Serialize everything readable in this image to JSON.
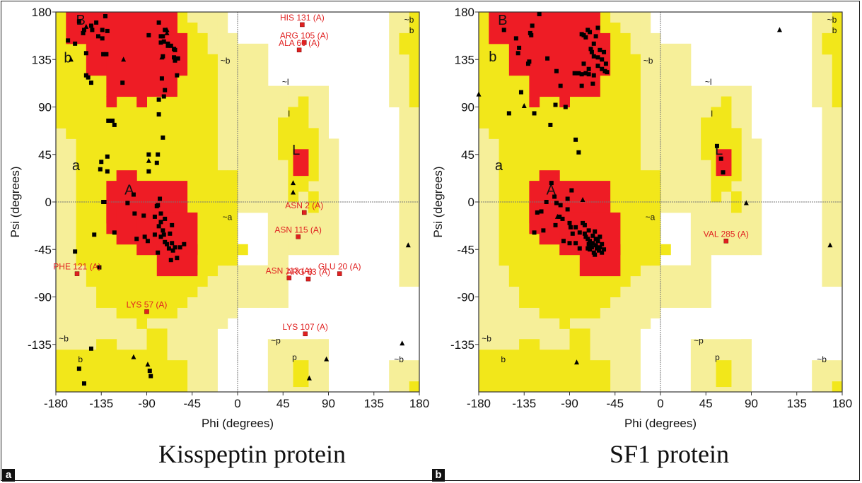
{
  "figure": {
    "panels": [
      {
        "tag": "a",
        "caption": "Kisspeptin protein"
      },
      {
        "tag": "b",
        "caption": "SF1 protein"
      }
    ]
  },
  "colors": {
    "core": "#ee1c25",
    "allowed": "#f2e71a",
    "generous": "#f6ef99",
    "disallowed": "#ffffff",
    "residue_outlier": "#e02020",
    "point": "#000000"
  },
  "chart_data": [
    {
      "type": "scatter",
      "title": "Kisspeptin protein",
      "xlabel": "Phi (degrees)",
      "ylabel": "Psi (degrees)",
      "xlim": [
        -180,
        180
      ],
      "ylim": [
        -180,
        180
      ],
      "xticks": [
        -180,
        -135,
        -90,
        -45,
        0,
        45,
        90,
        135,
        180
      ],
      "yticks": [
        180,
        135,
        90,
        45,
        0,
        -45,
        -90,
        -135
      ],
      "region_labels": [
        {
          "text": "B",
          "phi": -160,
          "psi": 168,
          "size": "big"
        },
        {
          "text": "b",
          "phi": -172,
          "psi": 132,
          "size": "big"
        },
        {
          "text": "~b",
          "phi": -17,
          "psi": 131,
          "size": "small"
        },
        {
          "text": "~l",
          "phi": 44,
          "psi": 111,
          "size": "small"
        },
        {
          "text": "l",
          "phi": 50,
          "psi": 81,
          "size": "small"
        },
        {
          "text": "L",
          "phi": 54,
          "psi": 45,
          "size": "big"
        },
        {
          "text": "a",
          "phi": -164,
          "psi": 30,
          "size": "big"
        },
        {
          "text": "A",
          "phi": -112,
          "psi": 7,
          "size": "big"
        },
        {
          "text": "~a",
          "phi": -15,
          "psi": -17,
          "size": "small"
        },
        {
          "text": "~b",
          "phi": -177,
          "psi": -132,
          "size": "small"
        },
        {
          "text": "b",
          "phi": -158,
          "psi": -152,
          "size": "small"
        },
        {
          "text": "~p",
          "phi": 33,
          "psi": -134,
          "size": "small"
        },
        {
          "text": "p",
          "phi": 54,
          "psi": -150,
          "size": "small"
        },
        {
          "text": "~b",
          "phi": 165,
          "psi": 170,
          "size": "small"
        },
        {
          "text": "b",
          "phi": 170,
          "psi": 160,
          "size": "small"
        },
        {
          "text": "~b",
          "phi": 155,
          "psi": -152,
          "size": "small"
        }
      ],
      "outliers": [
        {
          "label": "HIS 131 (A)",
          "phi": 64,
          "psi": 168
        },
        {
          "label": "ARG 105 (A)",
          "phi": 66,
          "psi": 151
        },
        {
          "label": "ALA 60 (A)",
          "phi": 61,
          "psi": 144
        },
        {
          "label": "ASN 2 (A)",
          "phi": 66,
          "psi": -10
        },
        {
          "label": "ASN 115 (A)",
          "phi": 60,
          "psi": -33
        },
        {
          "label": "ASN 113 (A)",
          "phi": 51,
          "psi": -72
        },
        {
          "label": "ARG 63 (A)",
          "phi": 70,
          "psi": -73
        },
        {
          "label": "GLU 20 (A)",
          "phi": 101,
          "psi": -68
        },
        {
          "label": "PHE 121 (A)",
          "phi": -159,
          "psi": -68
        },
        {
          "label": "LYS 57 (A)",
          "phi": -90,
          "psi": -104
        },
        {
          "label": "LYS 107 (A)",
          "phi": 67,
          "psi": -125
        }
      ],
      "squares": [
        [
          -168,
          153
        ],
        [
          -161,
          150
        ],
        [
          -157,
          171
        ],
        [
          -153,
          160
        ],
        [
          -152,
          163
        ],
        [
          -150,
          141
        ],
        [
          -145,
          167
        ],
        [
          -144,
          163
        ],
        [
          -140,
          170
        ],
        [
          -138,
          157
        ],
        [
          -134,
          163
        ],
        [
          -134,
          155
        ],
        [
          -131,
          176
        ],
        [
          -129,
          162
        ],
        [
          -133,
          140
        ],
        [
          -130,
          140
        ],
        [
          -88,
          158
        ],
        [
          -78,
          170
        ],
        [
          -76,
          157
        ],
        [
          -76,
          151
        ],
        [
          -74,
          157
        ],
        [
          -73,
          152
        ],
        [
          -72,
          163
        ],
        [
          -69,
          148
        ],
        [
          -69,
          150
        ],
        [
          -66,
          148
        ],
        [
          -63,
          145
        ],
        [
          -62,
          144
        ],
        [
          -63,
          137
        ],
        [
          -60,
          120
        ],
        [
          -59,
          136
        ],
        [
          -62,
          134
        ],
        [
          -74,
          138
        ],
        [
          -75,
          117
        ],
        [
          -72,
          106
        ],
        [
          -73,
          100
        ],
        [
          -78,
          97
        ],
        [
          -78,
          83
        ],
        [
          -114,
          113
        ],
        [
          -150,
          120
        ],
        [
          -148,
          118
        ],
        [
          -145,
          113
        ],
        [
          -128,
          77
        ],
        [
          -124,
          77
        ],
        [
          -122,
          73
        ],
        [
          -74,
          61
        ],
        [
          -135,
          38
        ],
        [
          -129,
          43
        ],
        [
          -136,
          31
        ],
        [
          -129,
          29
        ],
        [
          -88,
          45
        ],
        [
          -79,
          45
        ],
        [
          -80,
          37
        ],
        [
          -88,
          29
        ],
        [
          -133,
          0
        ],
        [
          -132,
          0
        ],
        [
          -109,
          -1
        ],
        [
          -103,
          7
        ],
        [
          -77,
          3
        ],
        [
          -79,
          -3
        ],
        [
          -80,
          -4
        ],
        [
          -102,
          -11
        ],
        [
          -93,
          -13
        ],
        [
          -82,
          -14
        ],
        [
          -76,
          -11
        ],
        [
          -76,
          -19
        ],
        [
          -72,
          -16
        ],
        [
          -78,
          -23
        ],
        [
          -74,
          -27
        ],
        [
          -73,
          -31
        ],
        [
          -76,
          -33
        ],
        [
          -72,
          -38
        ],
        [
          -65,
          -22
        ],
        [
          -67,
          -30
        ],
        [
          -70,
          -40
        ],
        [
          -68,
          -44
        ],
        [
          -64,
          -46
        ],
        [
          -62,
          -43
        ],
        [
          -65,
          -39
        ],
        [
          -57,
          -43
        ],
        [
          -53,
          -40
        ],
        [
          -60,
          -53
        ],
        [
          -66,
          -55
        ],
        [
          -79,
          -48
        ],
        [
          -100,
          -35
        ],
        [
          -89,
          -37
        ],
        [
          -92,
          -33
        ],
        [
          -82,
          -31
        ],
        [
          -142,
          -31
        ],
        [
          -122,
          -29
        ],
        [
          -161,
          -47
        ],
        [
          -137,
          -62
        ],
        [
          -87,
          -160
        ],
        [
          -86,
          -165
        ],
        [
          -157,
          -158
        ],
        [
          -152,
          -172
        ],
        [
          -145,
          -139
        ]
      ],
      "triangles": [
        [
          -150,
          166
        ],
        [
          -165,
          135
        ],
        [
          -70,
          160
        ],
        [
          -70,
          163
        ],
        [
          -75,
          137
        ],
        [
          -113,
          135
        ],
        [
          -88,
          39
        ],
        [
          -89,
          -154
        ],
        [
          -103,
          -147
        ],
        [
          55,
          18
        ],
        [
          55,
          9
        ],
        [
          88,
          -149
        ],
        [
          71,
          -167
        ],
        [
          169,
          -41
        ],
        [
          163,
          -134
        ]
      ]
    },
    {
      "type": "scatter",
      "title": "SF1 protein",
      "xlabel": "Phi (degrees)",
      "ylabel": "Psi (degrees)",
      "xlim": [
        -180,
        180
      ],
      "ylim": [
        -180,
        180
      ],
      "xticks": [
        -180,
        -135,
        -90,
        -45,
        0,
        45,
        90,
        135,
        180
      ],
      "yticks": [
        180,
        135,
        90,
        45,
        0,
        -45,
        -90,
        -135
      ],
      "region_labels": [
        {
          "text": "B",
          "phi": -161,
          "psi": 168,
          "size": "big"
        },
        {
          "text": "b",
          "phi": -170,
          "psi": 133,
          "size": "big"
        },
        {
          "text": "~b",
          "phi": -17,
          "psi": 131,
          "size": "small"
        },
        {
          "text": "~l",
          "phi": 44,
          "psi": 111,
          "size": "small"
        },
        {
          "text": "l",
          "phi": 50,
          "psi": 81,
          "size": "small"
        },
        {
          "text": "L",
          "phi": 54,
          "psi": 45,
          "size": "big"
        },
        {
          "text": "a",
          "phi": -164,
          "psi": 30,
          "size": "big"
        },
        {
          "text": "A",
          "phi": -113,
          "psi": 7,
          "size": "big"
        },
        {
          "text": "~a",
          "phi": -15,
          "psi": -17,
          "size": "small"
        },
        {
          "text": "~b",
          "phi": -177,
          "psi": -132,
          "size": "small"
        },
        {
          "text": "b",
          "phi": -158,
          "psi": -152,
          "size": "small"
        },
        {
          "text": "~p",
          "phi": 33,
          "psi": -134,
          "size": "small"
        },
        {
          "text": "p",
          "phi": 54,
          "psi": -150,
          "size": "small"
        },
        {
          "text": "~b",
          "phi": 165,
          "psi": 170,
          "size": "small"
        },
        {
          "text": "b",
          "phi": 170,
          "psi": 160,
          "size": "small"
        },
        {
          "text": "~b",
          "phi": 155,
          "psi": -152,
          "size": "small"
        }
      ],
      "outliers": [
        {
          "label": "VAL 285 (A)",
          "phi": 65,
          "psi": -37
        }
      ],
      "squares": [
        [
          -155,
          163
        ],
        [
          -143,
          155
        ],
        [
          -127,
          167
        ],
        [
          -141,
          141
        ],
        [
          -140,
          146
        ],
        [
          -120,
          178
        ],
        [
          -112,
          136
        ],
        [
          -103,
          124
        ],
        [
          -129,
          160
        ],
        [
          -128,
          158
        ],
        [
          -130,
          133
        ],
        [
          -131,
          131
        ],
        [
          -78,
          159
        ],
        [
          -76,
          158
        ],
        [
          -74,
          156
        ],
        [
          -72,
          163
        ],
        [
          -70,
          161
        ],
        [
          -64,
          157
        ],
        [
          -62,
          165
        ],
        [
          -66,
          150
        ],
        [
          -68,
          142
        ],
        [
          -66,
          138
        ],
        [
          -69,
          145
        ],
        [
          -62,
          137
        ],
        [
          -60,
          144
        ],
        [
          -58,
          135
        ],
        [
          -58,
          126
        ],
        [
          -56,
          142
        ],
        [
          -54,
          131
        ],
        [
          -55,
          124
        ],
        [
          -53,
          123
        ],
        [
          -71,
          126
        ],
        [
          -74,
          122
        ],
        [
          -78,
          121
        ],
        [
          -66,
          120
        ],
        [
          -71,
          121
        ],
        [
          -76,
          131
        ],
        [
          -81,
          122
        ],
        [
          -85,
          122
        ],
        [
          -62,
          129
        ],
        [
          -67,
          112
        ],
        [
          -78,
          110
        ],
        [
          -99,
          110
        ],
        [
          -104,
          92
        ],
        [
          -138,
          104
        ],
        [
          -150,
          84
        ],
        [
          -125,
          84
        ],
        [
          -109,
          73
        ],
        [
          -84,
          59
        ],
        [
          -94,
          90
        ],
        [
          -81,
          47
        ],
        [
          -113,
          0
        ],
        [
          -108,
          18
        ],
        [
          -105,
          5
        ],
        [
          -92,
          3
        ],
        [
          -88,
          11
        ],
        [
          -103,
          -1
        ],
        [
          -99,
          -3
        ],
        [
          -92,
          -7
        ],
        [
          -100,
          -14
        ],
        [
          -97,
          -16
        ],
        [
          -90,
          -20
        ],
        [
          -89,
          -24
        ],
        [
          -122,
          -10
        ],
        [
          -118,
          -9
        ],
        [
          -125,
          -29
        ],
        [
          -116,
          -27
        ],
        [
          -104,
          -22
        ],
        [
          -90,
          -39
        ],
        [
          -96,
          -37
        ],
        [
          -77,
          -20
        ],
        [
          -75,
          -22
        ],
        [
          -80,
          -29
        ],
        [
          -75,
          -30
        ],
        [
          -72,
          -35
        ],
        [
          -70,
          -37
        ],
        [
          -67,
          -39
        ],
        [
          -64,
          -41
        ],
        [
          -70,
          -45
        ],
        [
          -66,
          -48
        ],
        [
          -61,
          -46
        ],
        [
          -62,
          -37
        ],
        [
          -60,
          -33
        ],
        [
          -64,
          -35
        ],
        [
          -67,
          -32
        ],
        [
          -69,
          -42
        ],
        [
          -72,
          -44
        ],
        [
          -58,
          -40
        ],
        [
          -65,
          -50
        ],
        [
          -68,
          -43
        ],
        [
          -63,
          -44
        ],
        [
          -71,
          -40
        ],
        [
          -74,
          -33
        ],
        [
          -60,
          -43
        ],
        [
          -56,
          -45
        ],
        [
          -58,
          -48
        ],
        [
          -65,
          -28
        ],
        [
          -71,
          -27
        ],
        [
          -84,
          -24
        ],
        [
          -87,
          -30
        ],
        [
          -84,
          -39
        ],
        [
          -80,
          -44
        ],
        [
          56,
          53
        ],
        [
          60,
          41
        ],
        [
          62,
          28
        ]
      ],
      "triangles": [
        [
          -180,
          102
        ],
        [
          -135,
          91
        ],
        [
          -77,
          2
        ],
        [
          -102,
          -14
        ],
        [
          -83,
          -152
        ],
        [
          118,
          163
        ],
        [
          85,
          -1
        ],
        [
          168,
          -41
        ]
      ]
    }
  ]
}
